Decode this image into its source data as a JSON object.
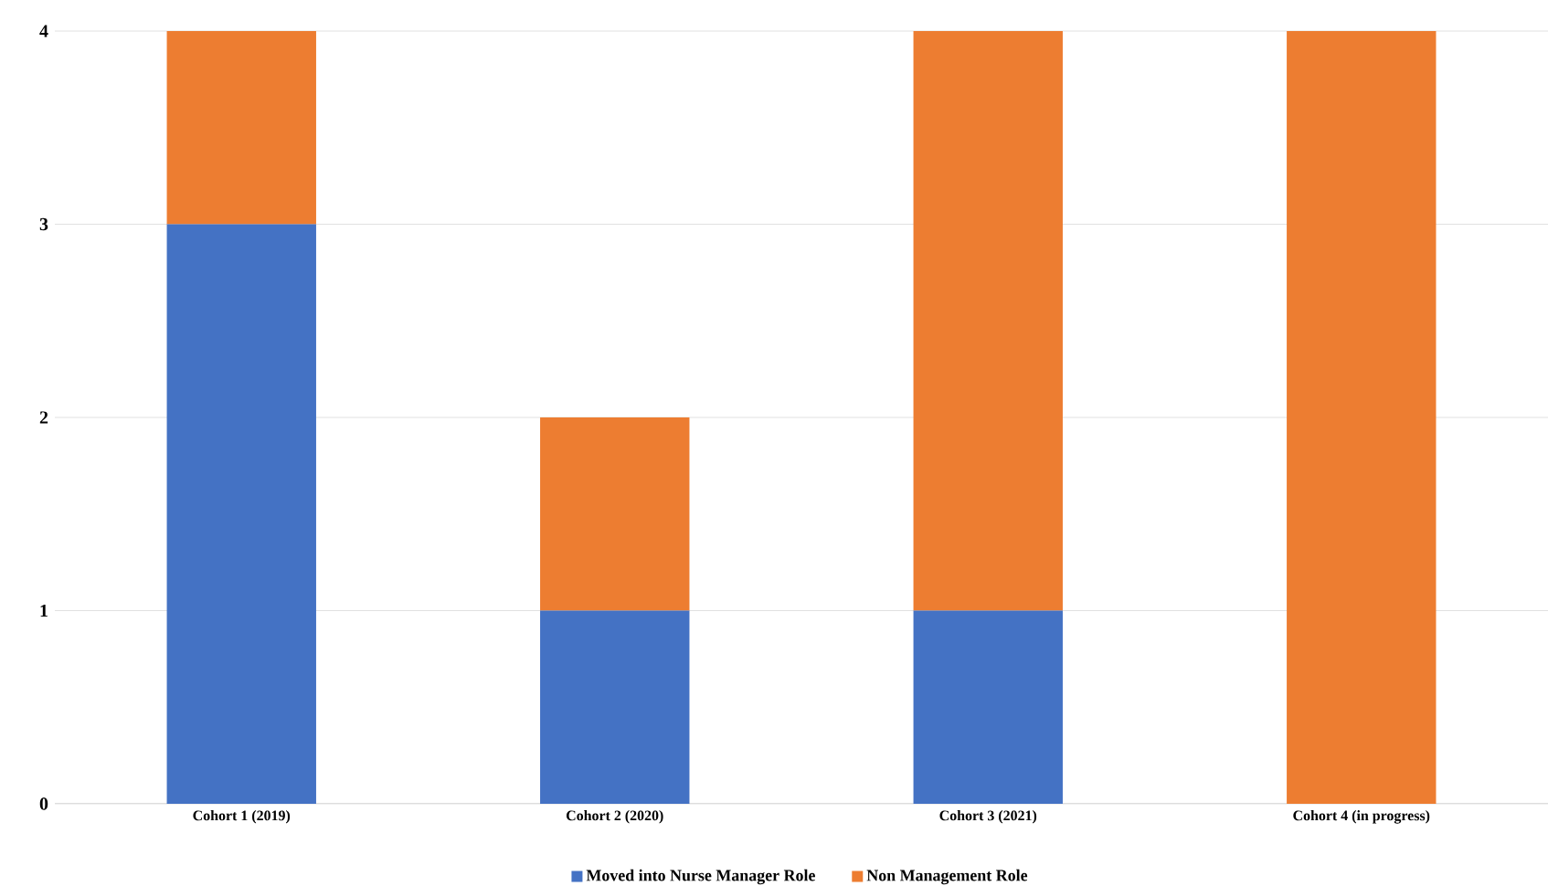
{
  "chart_data": {
    "type": "bar",
    "stacked": true,
    "categories": [
      "Cohort 1 (2019)",
      "Cohort 2 (2020)",
      "Cohort 3 (2021)",
      "Cohort 4 (in progress)"
    ],
    "series": [
      {
        "name": "Moved into Nurse Manager Role",
        "color": "#4472c4",
        "values": [
          3,
          1,
          1,
          0
        ]
      },
      {
        "name": "Non Management Role",
        "color": "#ed7d31",
        "values": [
          1,
          1,
          3,
          4
        ]
      }
    ],
    "ylim": [
      0,
      4
    ],
    "yticks": [
      0,
      1,
      2,
      3,
      4
    ],
    "grid": "y",
    "legend": "bottom"
  }
}
